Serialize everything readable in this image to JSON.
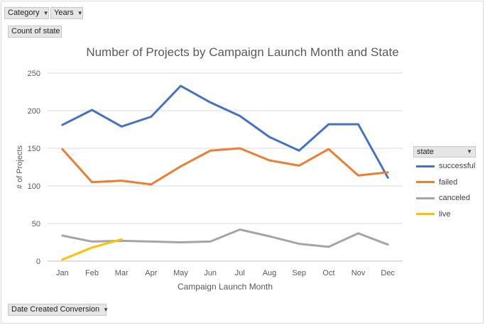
{
  "pivot": {
    "category_label": "Category",
    "years_label": "Years",
    "values_label": "Count of state",
    "axis_field_label": "Date Created Conversion",
    "legend_field_label": "state",
    "dropdown_icon": "dropdown-arrow-icon"
  },
  "chart_data": {
    "type": "line",
    "title": "Number of Projects by Campaign Launch Month and State",
    "xlabel": "Campaign Launch Month",
    "ylabel": "# of Projects",
    "categories": [
      "Jan",
      "Feb",
      "Mar",
      "Apr",
      "May",
      "Jun",
      "Jul",
      "Aug",
      "Sep",
      "Oct",
      "Nov",
      "Dec"
    ],
    "ylim": [
      0,
      250
    ],
    "yticks": [
      0,
      50,
      100,
      150,
      200,
      250
    ],
    "grid": true,
    "legend_position": "right",
    "series": [
      {
        "name": "successful",
        "color": "#4472c4",
        "values": [
          181,
          201,
          179,
          192,
          233,
          211,
          193,
          165,
          147,
          182,
          182,
          111
        ]
      },
      {
        "name": "failed",
        "color": "#ed7d31",
        "values": [
          149,
          105,
          107,
          102,
          126,
          147,
          150,
          134,
          127,
          149,
          114,
          118
        ]
      },
      {
        "name": "canceled",
        "color": "#a5a5a5",
        "values": [
          34,
          26,
          27,
          26,
          25,
          26,
          42,
          33,
          23,
          19,
          37,
          22
        ]
      },
      {
        "name": "live",
        "color": "#ffc000",
        "values": [
          2,
          18,
          29,
          null,
          null,
          null,
          null,
          null,
          null,
          null,
          null,
          null
        ]
      }
    ]
  }
}
